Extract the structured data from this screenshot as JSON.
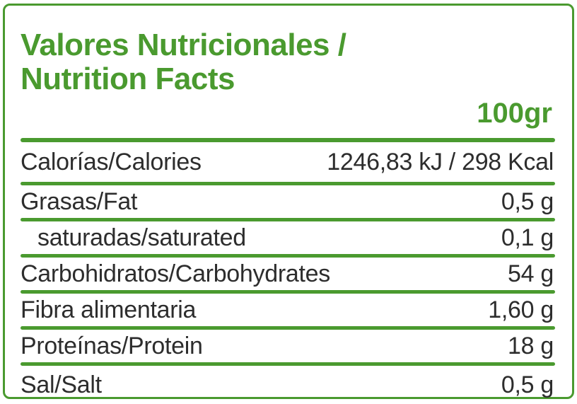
{
  "label": {
    "title_line1": "Valores Nutricionales /",
    "title_line2": "Nutrition Facts",
    "serving": "100gr",
    "colors": {
      "accent_green": "#4a9a2f",
      "text_dark": "#2d2d2d",
      "background": "#ffffff"
    },
    "rows": [
      {
        "name": "Calorías/Calories",
        "value": "1246,83 kJ / 298 Kcal",
        "indent": false
      },
      {
        "name": "Grasas/Fat",
        "value": "0,5 g",
        "indent": false
      },
      {
        "name": "saturadas/saturated",
        "value": "0,1 g",
        "indent": true
      },
      {
        "name": "Carbohidratos/Carbohydrates",
        "value": "54 g",
        "indent": false
      },
      {
        "name": "Fibra alimentaria",
        "value": "1,60 g",
        "indent": false
      },
      {
        "name": "Proteínas/Protein",
        "value": "18 g",
        "indent": false
      },
      {
        "name": "Sal/Salt",
        "value": "0,5 g",
        "indent": false
      }
    ]
  }
}
